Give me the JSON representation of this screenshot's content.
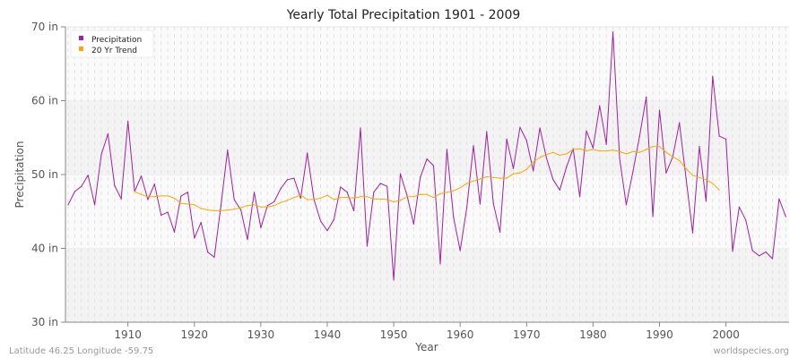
{
  "chart_data": {
    "type": "line",
    "title": "Yearly Total Precipitation 1901 - 2009",
    "xlabel": "Year",
    "ylabel": "Precipitation",
    "xlim": [
      1901,
      2009
    ],
    "ylim": [
      30,
      70
    ],
    "y_ticks": [
      "30 in",
      "40 in",
      "50 in",
      "60 in",
      "70 in"
    ],
    "x_ticks": [
      "1910",
      "1920",
      "1930",
      "1940",
      "1950",
      "1960",
      "1970",
      "1980",
      "1990",
      "2000"
    ],
    "grid": true,
    "legend_position": "top-left",
    "series": [
      {
        "name": "Precipitation",
        "color": "#a020a0",
        "x": [
          1901,
          1902,
          1903,
          1904,
          1905,
          1906,
          1907,
          1908,
          1909,
          1910,
          1911,
          1912,
          1913,
          1914,
          1915,
          1916,
          1917,
          1918,
          1919,
          1920,
          1921,
          1922,
          1923,
          1924,
          1925,
          1926,
          1927,
          1928,
          1929,
          1930,
          1931,
          1932,
          1933,
          1934,
          1935,
          1936,
          1937,
          1938,
          1939,
          1940,
          1941,
          1942,
          1943,
          1944,
          1945,
          1946,
          1947,
          1948,
          1949,
          1950,
          1951,
          1952,
          1953,
          1954,
          1955,
          1956,
          1957,
          1958,
          1959,
          1960,
          1961,
          1962,
          1963,
          1964,
          1965,
          1966,
          1967,
          1968,
          1969,
          1970,
          1971,
          1972,
          1973,
          1974,
          1975,
          1976,
          1977,
          1978,
          1979,
          1980,
          1981,
          1982,
          1983,
          1984,
          1985,
          1986,
          1987,
          1988,
          1989,
          1990,
          1991,
          1992,
          1993,
          1994,
          1995,
          1996,
          1997,
          1998,
          1999,
          2000,
          2001,
          2002,
          2003,
          2004,
          2005,
          2006,
          2007,
          2008,
          2009
        ],
        "values": [
          45.9,
          47.7,
          48.4,
          49.9,
          45.9,
          52.7,
          55.5,
          48.5,
          46.7,
          57.2,
          47.7,
          49.8,
          46.6,
          48.7,
          44.5,
          44.9,
          42.2,
          47.1,
          47.6,
          41.4,
          43.5,
          39.5,
          38.8,
          45.8,
          53.3,
          46.6,
          45.2,
          41.2,
          47.6,
          42.8,
          45.8,
          46.3,
          48.1,
          49.3,
          49.5,
          46.8,
          52.9,
          46.6,
          43.7,
          42.4,
          43.9,
          48.3,
          47.6,
          45.1,
          56.3,
          40.3,
          47.6,
          48.8,
          48.4,
          35.7,
          50.1,
          47.2,
          43.3,
          49.6,
          52.1,
          51.2,
          37.9,
          53.4,
          44.2,
          39.7,
          45.5,
          53.9,
          46.0,
          55.8,
          46.1,
          42.2,
          54.8,
          50.8,
          56.4,
          54.6,
          50.5,
          56.3,
          52.2,
          49.3,
          47.9,
          51.0,
          53.5,
          47.0,
          55.9,
          53.6,
          59.3,
          54.1,
          69.3,
          52.2,
          45.9,
          50.4,
          55.2,
          60.5,
          44.3,
          58.7,
          50.2,
          52.4,
          57.0,
          49.5,
          42.1,
          53.8,
          46.4,
          63.3,
          55.2,
          54.8,
          39.6,
          45.6,
          43.8,
          39.7,
          39.0,
          39.5,
          38.6,
          46.7,
          44.3
        ]
      },
      {
        "name": "20 Yr Trend",
        "color": "#ffa500",
        "x": [
          1911,
          1912,
          1913,
          1914,
          1915,
          1916,
          1917,
          1918,
          1919,
          1920,
          1921,
          1922,
          1923,
          1924,
          1925,
          1926,
          1927,
          1928,
          1929,
          1930,
          1931,
          1932,
          1933,
          1934,
          1935,
          1936,
          1937,
          1938,
          1939,
          1940,
          1941,
          1942,
          1943,
          1944,
          1945,
          1946,
          1947,
          1948,
          1949,
          1950,
          1951,
          1952,
          1953,
          1954,
          1955,
          1956,
          1957,
          1958,
          1959,
          1960,
          1961,
          1962,
          1963,
          1964,
          1965,
          1966,
          1967,
          1968,
          1969,
          1970,
          1971,
          1972,
          1973,
          1974,
          1975,
          1976,
          1977,
          1978,
          1979,
          1980,
          1981,
          1982,
          1983,
          1984,
          1985,
          1986,
          1987,
          1988,
          1989,
          1990,
          1991,
          1992,
          1993,
          1994,
          1995,
          1996,
          1997,
          1998,
          1999
        ],
        "values": [
          47.7,
          47.3,
          47.0,
          47.0,
          47.1,
          47.1,
          46.8,
          46.1,
          46.0,
          45.9,
          45.4,
          45.2,
          45.1,
          45.1,
          45.2,
          45.3,
          45.5,
          45.8,
          45.9,
          45.6,
          45.6,
          45.8,
          46.2,
          46.5,
          46.9,
          47.2,
          46.6,
          46.6,
          46.8,
          47.2,
          46.6,
          46.9,
          46.9,
          46.8,
          47.0,
          47.0,
          46.7,
          46.7,
          46.6,
          46.3,
          46.5,
          47.0,
          47.0,
          47.3,
          47.3,
          46.9,
          47.4,
          47.6,
          47.8,
          48.2,
          48.8,
          49.1,
          49.4,
          49.7,
          49.6,
          49.5,
          49.5,
          50.1,
          50.2,
          50.7,
          51.7,
          52.3,
          52.7,
          53.0,
          52.6,
          52.8,
          53.4,
          53.5,
          53.2,
          53.4,
          53.2,
          53.2,
          53.3,
          53.1,
          52.8,
          53.1,
          53.0,
          53.4,
          53.8,
          53.8,
          53.0,
          52.4,
          51.9,
          50.8,
          49.9,
          49.6,
          49.3,
          48.8,
          47.9
        ]
      }
    ]
  },
  "footer": {
    "location": "Latitude 46.25 Longitude -59.75",
    "source": "worldspecies.org"
  }
}
